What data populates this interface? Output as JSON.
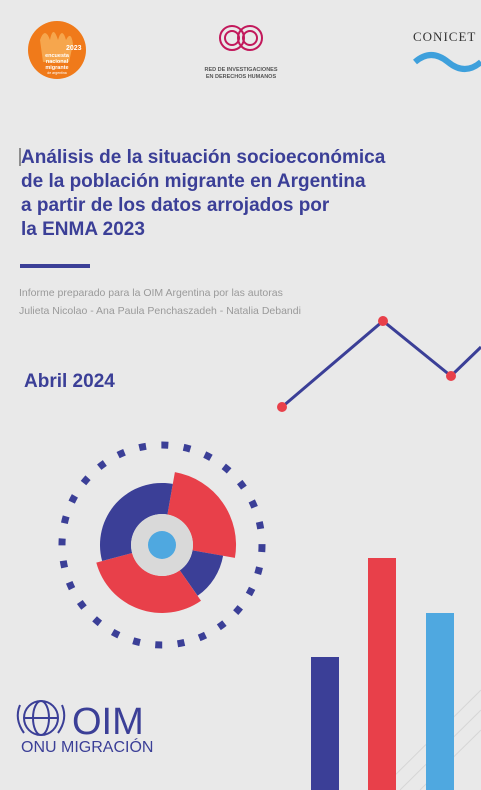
{
  "header": {
    "left_logo": {
      "year": "2023",
      "lines": [
        "encuesta",
        "nacional",
        "migrante",
        "de argentina"
      ]
    },
    "center_logo": {
      "lines": [
        "RED DE INVESTIGACIONES",
        "EN DERECHOS HUMANOS"
      ]
    },
    "right_logo": "CONICET"
  },
  "title": [
    "Análisis de la situación socioeconómica",
    "de la población migrante en Argentina",
    "a partir de los datos arrojados por",
    "la ENMA 2023"
  ],
  "authors": [
    "Informe preparado para la OIM Argentina por las autoras",
    "Julieta Nicolao - Ana Paula Penchaszadeh - Natalia Debandi"
  ],
  "date": "Abril 2024",
  "footer_logo": {
    "name": "OIM",
    "subtitle": "ONU MIGRACIÓN"
  }
}
